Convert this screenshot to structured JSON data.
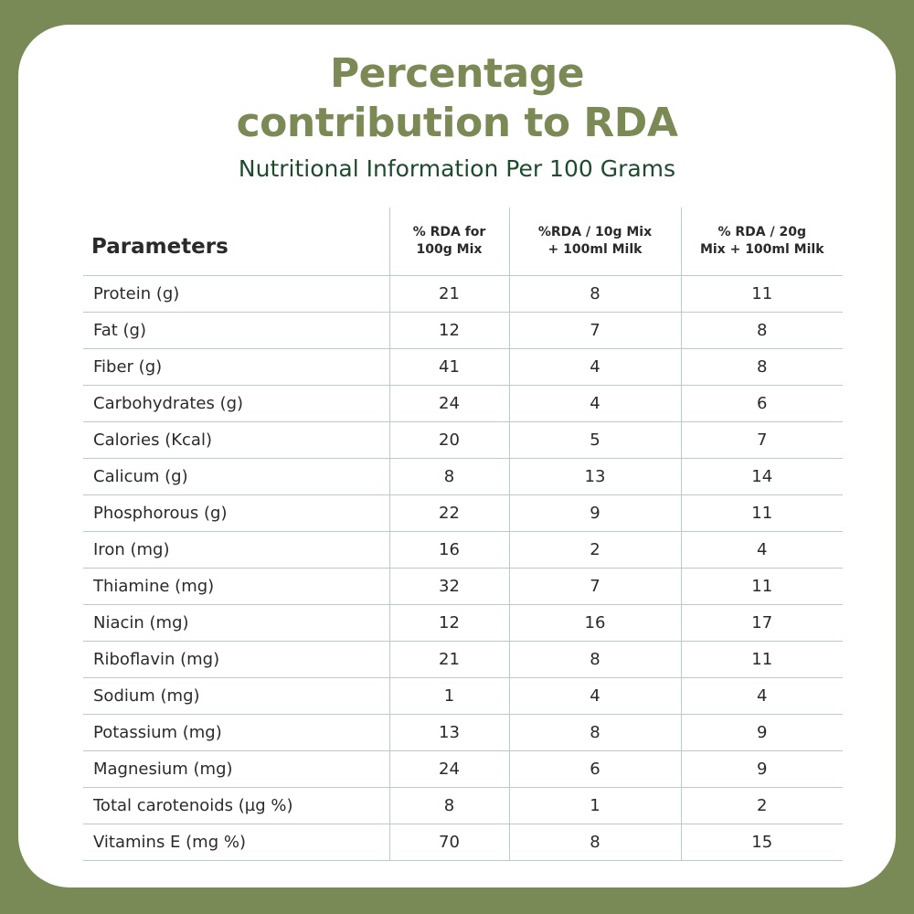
{
  "title_line1": "Percentage",
  "title_line2": "contribution to RDA",
  "subtitle": "Nutritional Information Per 100 Grams",
  "headers": {
    "parameters": "Parameters",
    "col1_line1": "% RDA for",
    "col1_line2": "100g Mix",
    "col2_line1": "%RDA / 10g Mix",
    "col2_line2": "+ 100ml Milk",
    "col3_line1": "% RDA / 20g",
    "col3_line2": "Mix + 100ml Milk"
  },
  "rows": [
    {
      "name": "Protein (g)",
      "c1": "21",
      "c2": "8",
      "c3": "11"
    },
    {
      "name": "Fat (g)",
      "c1": "12",
      "c2": "7",
      "c3": "8"
    },
    {
      "name": "Fiber (g)",
      "c1": "41",
      "c2": "4",
      "c3": "8"
    },
    {
      "name": "Carbohydrates (g)",
      "c1": "24",
      "c2": "4",
      "c3": "6"
    },
    {
      "name": "Calories (Kcal)",
      "c1": "20",
      "c2": "5",
      "c3": "7"
    },
    {
      "name": "Calicum (g)",
      "c1": "8",
      "c2": "13",
      "c3": "14"
    },
    {
      "name": "Phosphorous (g)",
      "c1": "22",
      "c2": "9",
      "c3": "11"
    },
    {
      "name": "Iron (mg)",
      "c1": "16",
      "c2": "2",
      "c3": "4"
    },
    {
      "name": "Thiamine (mg)",
      "c1": "32",
      "c2": "7",
      "c3": "11"
    },
    {
      "name": "Niacin (mg)",
      "c1": "12",
      "c2": "16",
      "c3": "17"
    },
    {
      "name": "Riboflavin (mg)",
      "c1": "21",
      "c2": "8",
      "c3": "11"
    },
    {
      "name": "Sodium (mg)",
      "c1": "1",
      "c2": "4",
      "c3": "4"
    },
    {
      "name": "Potassium (mg)",
      "c1": "13",
      "c2": "8",
      "c3": "9"
    },
    {
      "name": "Magnesium (mg)",
      "c1": "24",
      "c2": "6",
      "c3": "9"
    },
    {
      "name": "Total carotenoids (µg %)",
      "c1": "8",
      "c2": "1",
      "c3": "2"
    },
    {
      "name": "Vitamins E (mg %)",
      "c1": "70",
      "c2": "8",
      "c3": "15"
    }
  ]
}
